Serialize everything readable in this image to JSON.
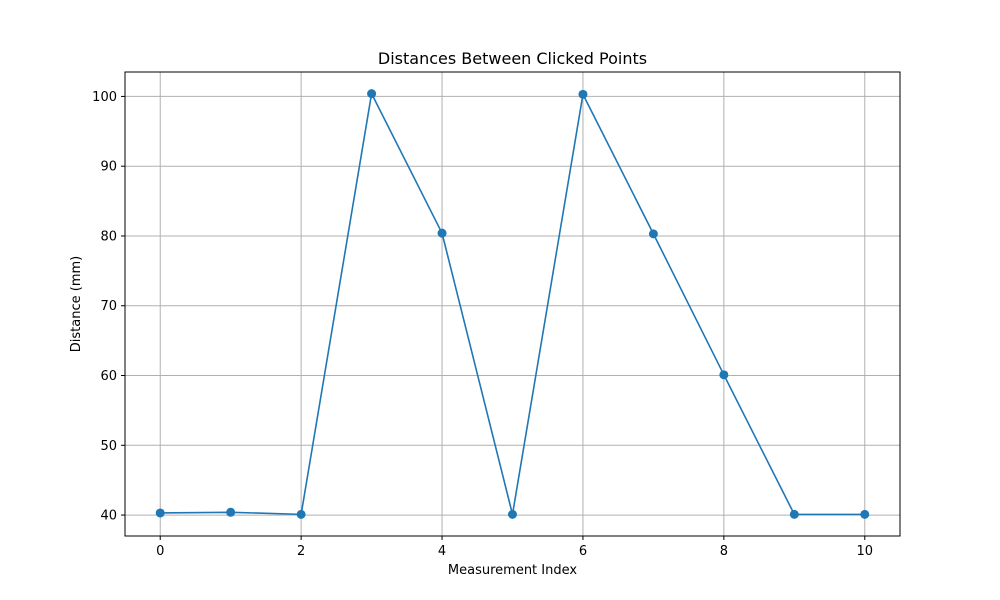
{
  "chart_data": {
    "type": "line",
    "title": "Distances Between Clicked Points",
    "xlabel": "Measurement Index",
    "ylabel": "Distance (mm)",
    "x": [
      0,
      1,
      2,
      3,
      4,
      5,
      6,
      7,
      8,
      9,
      10
    ],
    "series": [
      {
        "values": [
          40.3,
          40.4,
          40.1,
          100.4,
          80.4,
          40.1,
          100.3,
          80.3,
          60.1,
          40.1,
          40.1
        ],
        "color": "#1f77b4",
        "marker": "circle"
      }
    ],
    "xlim": [
      -0.5,
      10.5
    ],
    "ylim": [
      37,
      103.5
    ],
    "xticks": [
      "0",
      "2",
      "4",
      "6",
      "8",
      "10"
    ],
    "yticks": [
      "40",
      "50",
      "60",
      "70",
      "80",
      "90",
      "100"
    ],
    "grid": true,
    "grid_color": "#b0b0b0",
    "legend": "none"
  }
}
